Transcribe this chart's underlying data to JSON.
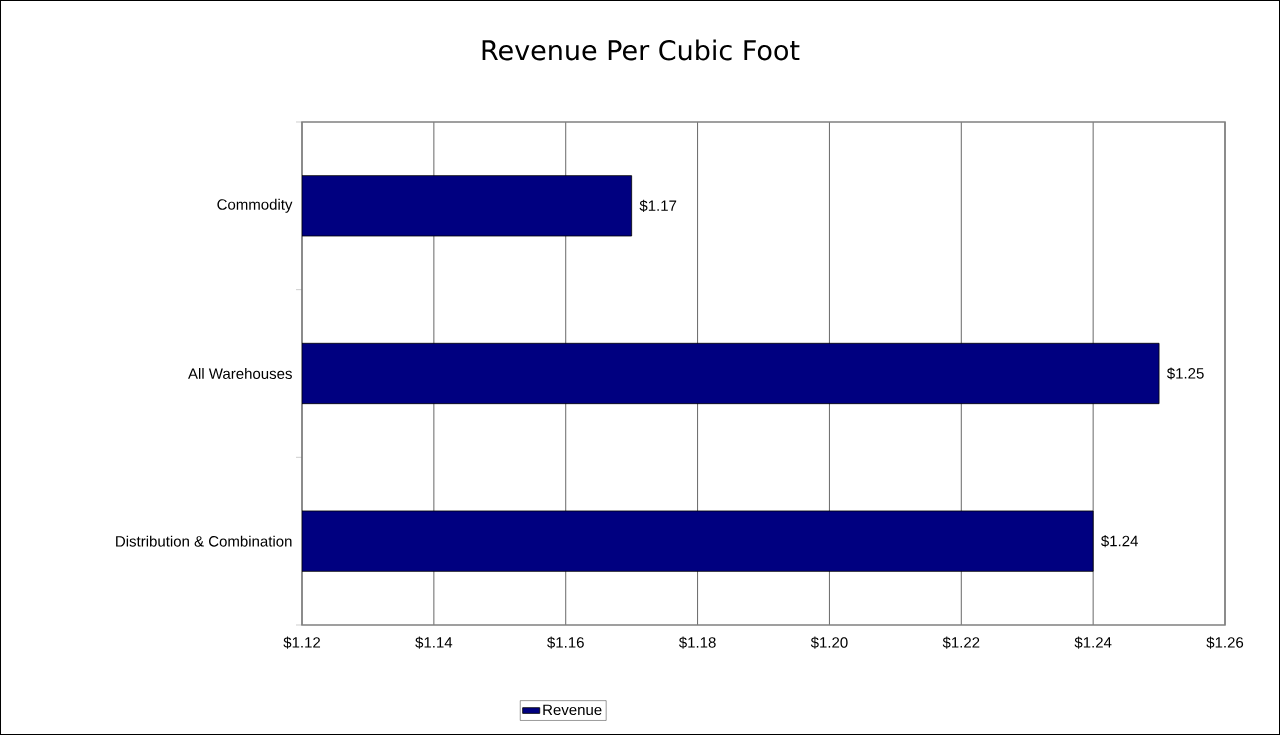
{
  "chart_data": {
    "type": "bar",
    "orientation": "horizontal",
    "title": "Revenue Per Cubic Foot",
    "categories": [
      "Commodity",
      "All Warehouses",
      "Distribution & Combination"
    ],
    "series": [
      {
        "name": "Revenue",
        "color": "#000080",
        "values": [
          1.17,
          1.25,
          1.24
        ],
        "value_labels": [
          "$1.17",
          "$1.25",
          "$1.24"
        ]
      }
    ],
    "xlim": [
      1.12,
      1.26
    ],
    "xticks": [
      {
        "value": 1.12,
        "label": "$1.12"
      },
      {
        "value": 1.14,
        "label": "$1.14"
      },
      {
        "value": 1.16,
        "label": "$1.16"
      },
      {
        "value": 1.18,
        "label": "$1.18"
      },
      {
        "value": 1.2,
        "label": "$1.20"
      },
      {
        "value": 1.22,
        "label": "$1.22"
      },
      {
        "value": 1.24,
        "label": "$1.24"
      },
      {
        "value": 1.26,
        "label": "$1.26"
      }
    ],
    "grid": "x",
    "legend": "bottom"
  }
}
